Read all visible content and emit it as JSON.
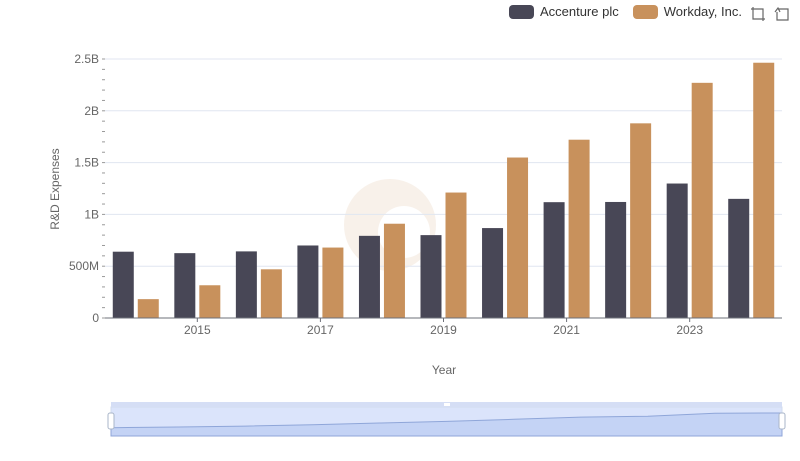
{
  "legend": {
    "items": [
      {
        "label": "Accenture plc",
        "color": "#484756"
      },
      {
        "label": "Workday, Inc.",
        "color": "#c8915c"
      }
    ]
  },
  "toolbox": {
    "icons": [
      "zoom-select-icon",
      "restore-icon"
    ]
  },
  "chart_data": {
    "type": "bar",
    "x": [
      2014,
      2015,
      2016,
      2017,
      2018,
      2019,
      2020,
      2021,
      2022,
      2023,
      2024
    ],
    "x_tick_labels": [
      "2015",
      "2017",
      "2019",
      "2021",
      "2023"
    ],
    "xlabel": "Year",
    "ylabel": "R&D Expenses",
    "y_tick_labels": [
      "0",
      "500M",
      "1B",
      "1.5B",
      "2B",
      "2.5B"
    ],
    "ylim": [
      0,
      2500000000
    ],
    "grid": true,
    "legend_position": "top-right",
    "series": [
      {
        "name": "Accenture plc",
        "color": "#484756",
        "values": [
          640000000,
          626000000,
          643000000,
          700000000,
          793000000,
          800000000,
          868000000,
          1118000000,
          1120000000,
          1298000000,
          1150000000
        ]
      },
      {
        "name": "Workday, Inc.",
        "color": "#c8915c",
        "values": [
          182000000,
          316000000,
          470000000,
          680000000,
          910000000,
          1211000000,
          1549000000,
          1721000000,
          1879000000,
          2270000000,
          2464000000
        ]
      }
    ],
    "datazoom": {
      "start": 0,
      "end": 100
    }
  }
}
